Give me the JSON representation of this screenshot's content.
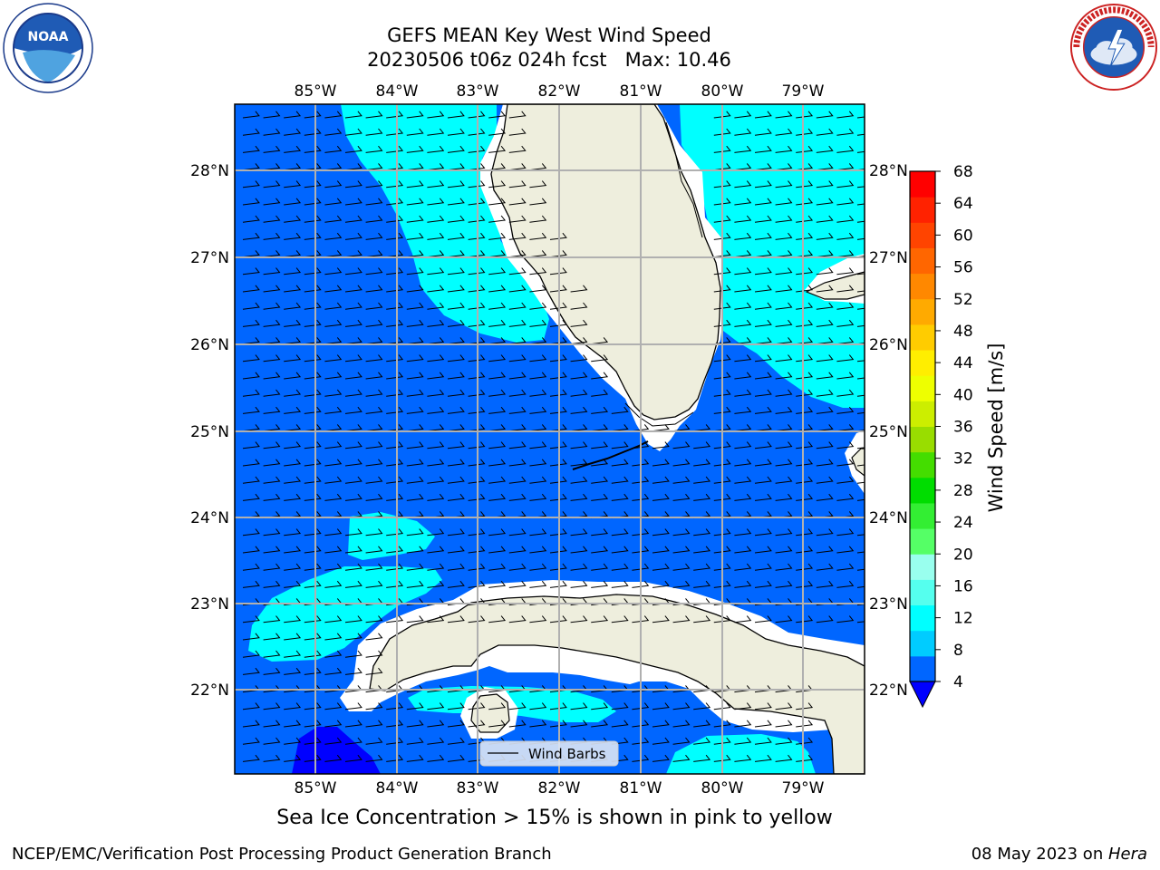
{
  "title_line1": "GEFS MEAN Key West Wind Speed",
  "title_line2": "20230506 t06z 024h fcst   Max: 10.46",
  "caption": "Sea Ice Concentration > 15% is shown in pink to yellow",
  "footer_left": "NCEP/EMC/Verification Post Processing Product Generation Branch",
  "footer_right_date": "08 May 2023 on ",
  "footer_right_host": "Hera",
  "legend_label": "Wind Barbs",
  "colorbar": {
    "label": "Wind Speed [m/s]",
    "ticks": [
      "4",
      "8",
      "12",
      "16",
      "20",
      "24",
      "28",
      "32",
      "36",
      "40",
      "44",
      "48",
      "52",
      "56",
      "60",
      "64",
      "68"
    ],
    "colors": [
      "#0066ff",
      "#00ccff",
      "#00ffff",
      "#55ffee",
      "#99ffee",
      "#55ff66",
      "#33ee33",
      "#00dd00",
      "#44dd00",
      "#99dd00",
      "#ccee00",
      "#eeff00",
      "#ffee00",
      "#ffcc00",
      "#ffaa00",
      "#ff8800",
      "#ff6600",
      "#ff4400",
      "#ff2200",
      "#ff0000"
    ],
    "under_color": "#0000ff"
  },
  "map": {
    "lon_labels": [
      "85°W",
      "84°W",
      "83°W",
      "82°W",
      "81°W",
      "80°W",
      "79°W"
    ],
    "lat_labels": [
      "28°N",
      "27°N",
      "26°N",
      "25°N",
      "24°N",
      "23°N",
      "22°N"
    ],
    "colors": {
      "water_8_12": "#00ffff",
      "water_4_8": "#0066ff",
      "water_under_4": "#0000ff",
      "land": "#eeeedd",
      "coast_gap": "#ffffff",
      "grid": "#b0b0b0"
    }
  },
  "logos": {
    "noaa_text": "NOAA"
  }
}
